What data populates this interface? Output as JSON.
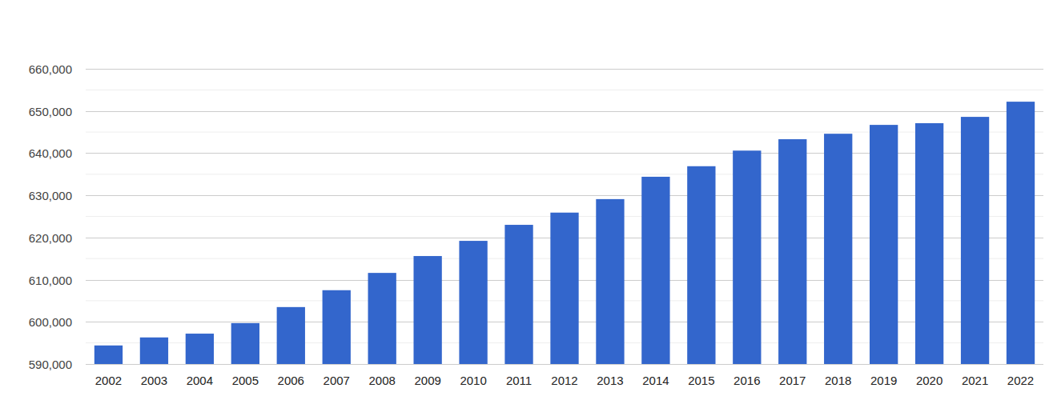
{
  "chart_data": {
    "type": "bar",
    "categories": [
      "2002",
      "2003",
      "2004",
      "2005",
      "2006",
      "2007",
      "2008",
      "2009",
      "2010",
      "2011",
      "2012",
      "2013",
      "2014",
      "2015",
      "2016",
      "2017",
      "2018",
      "2019",
      "2020",
      "2021",
      "2022"
    ],
    "values": [
      594400,
      596300,
      597200,
      599700,
      603500,
      607500,
      611600,
      615600,
      619200,
      623000,
      625900,
      629100,
      634400,
      636900,
      640600,
      643300,
      644600,
      646700,
      647100,
      648600,
      652200
    ],
    "color": "#3366cc",
    "ylim": [
      590000,
      660000
    ],
    "yticks": [
      {
        "value": 590000,
        "label": "590,000"
      },
      {
        "value": 600000,
        "label": "600,000"
      },
      {
        "value": 610000,
        "label": "610,000"
      },
      {
        "value": 620000,
        "label": "620,000"
      },
      {
        "value": 630000,
        "label": "630,000"
      },
      {
        "value": 640000,
        "label": "640,000"
      },
      {
        "value": 650000,
        "label": "650,000"
      },
      {
        "value": 660000,
        "label": "660,000"
      }
    ],
    "grid": true
  }
}
